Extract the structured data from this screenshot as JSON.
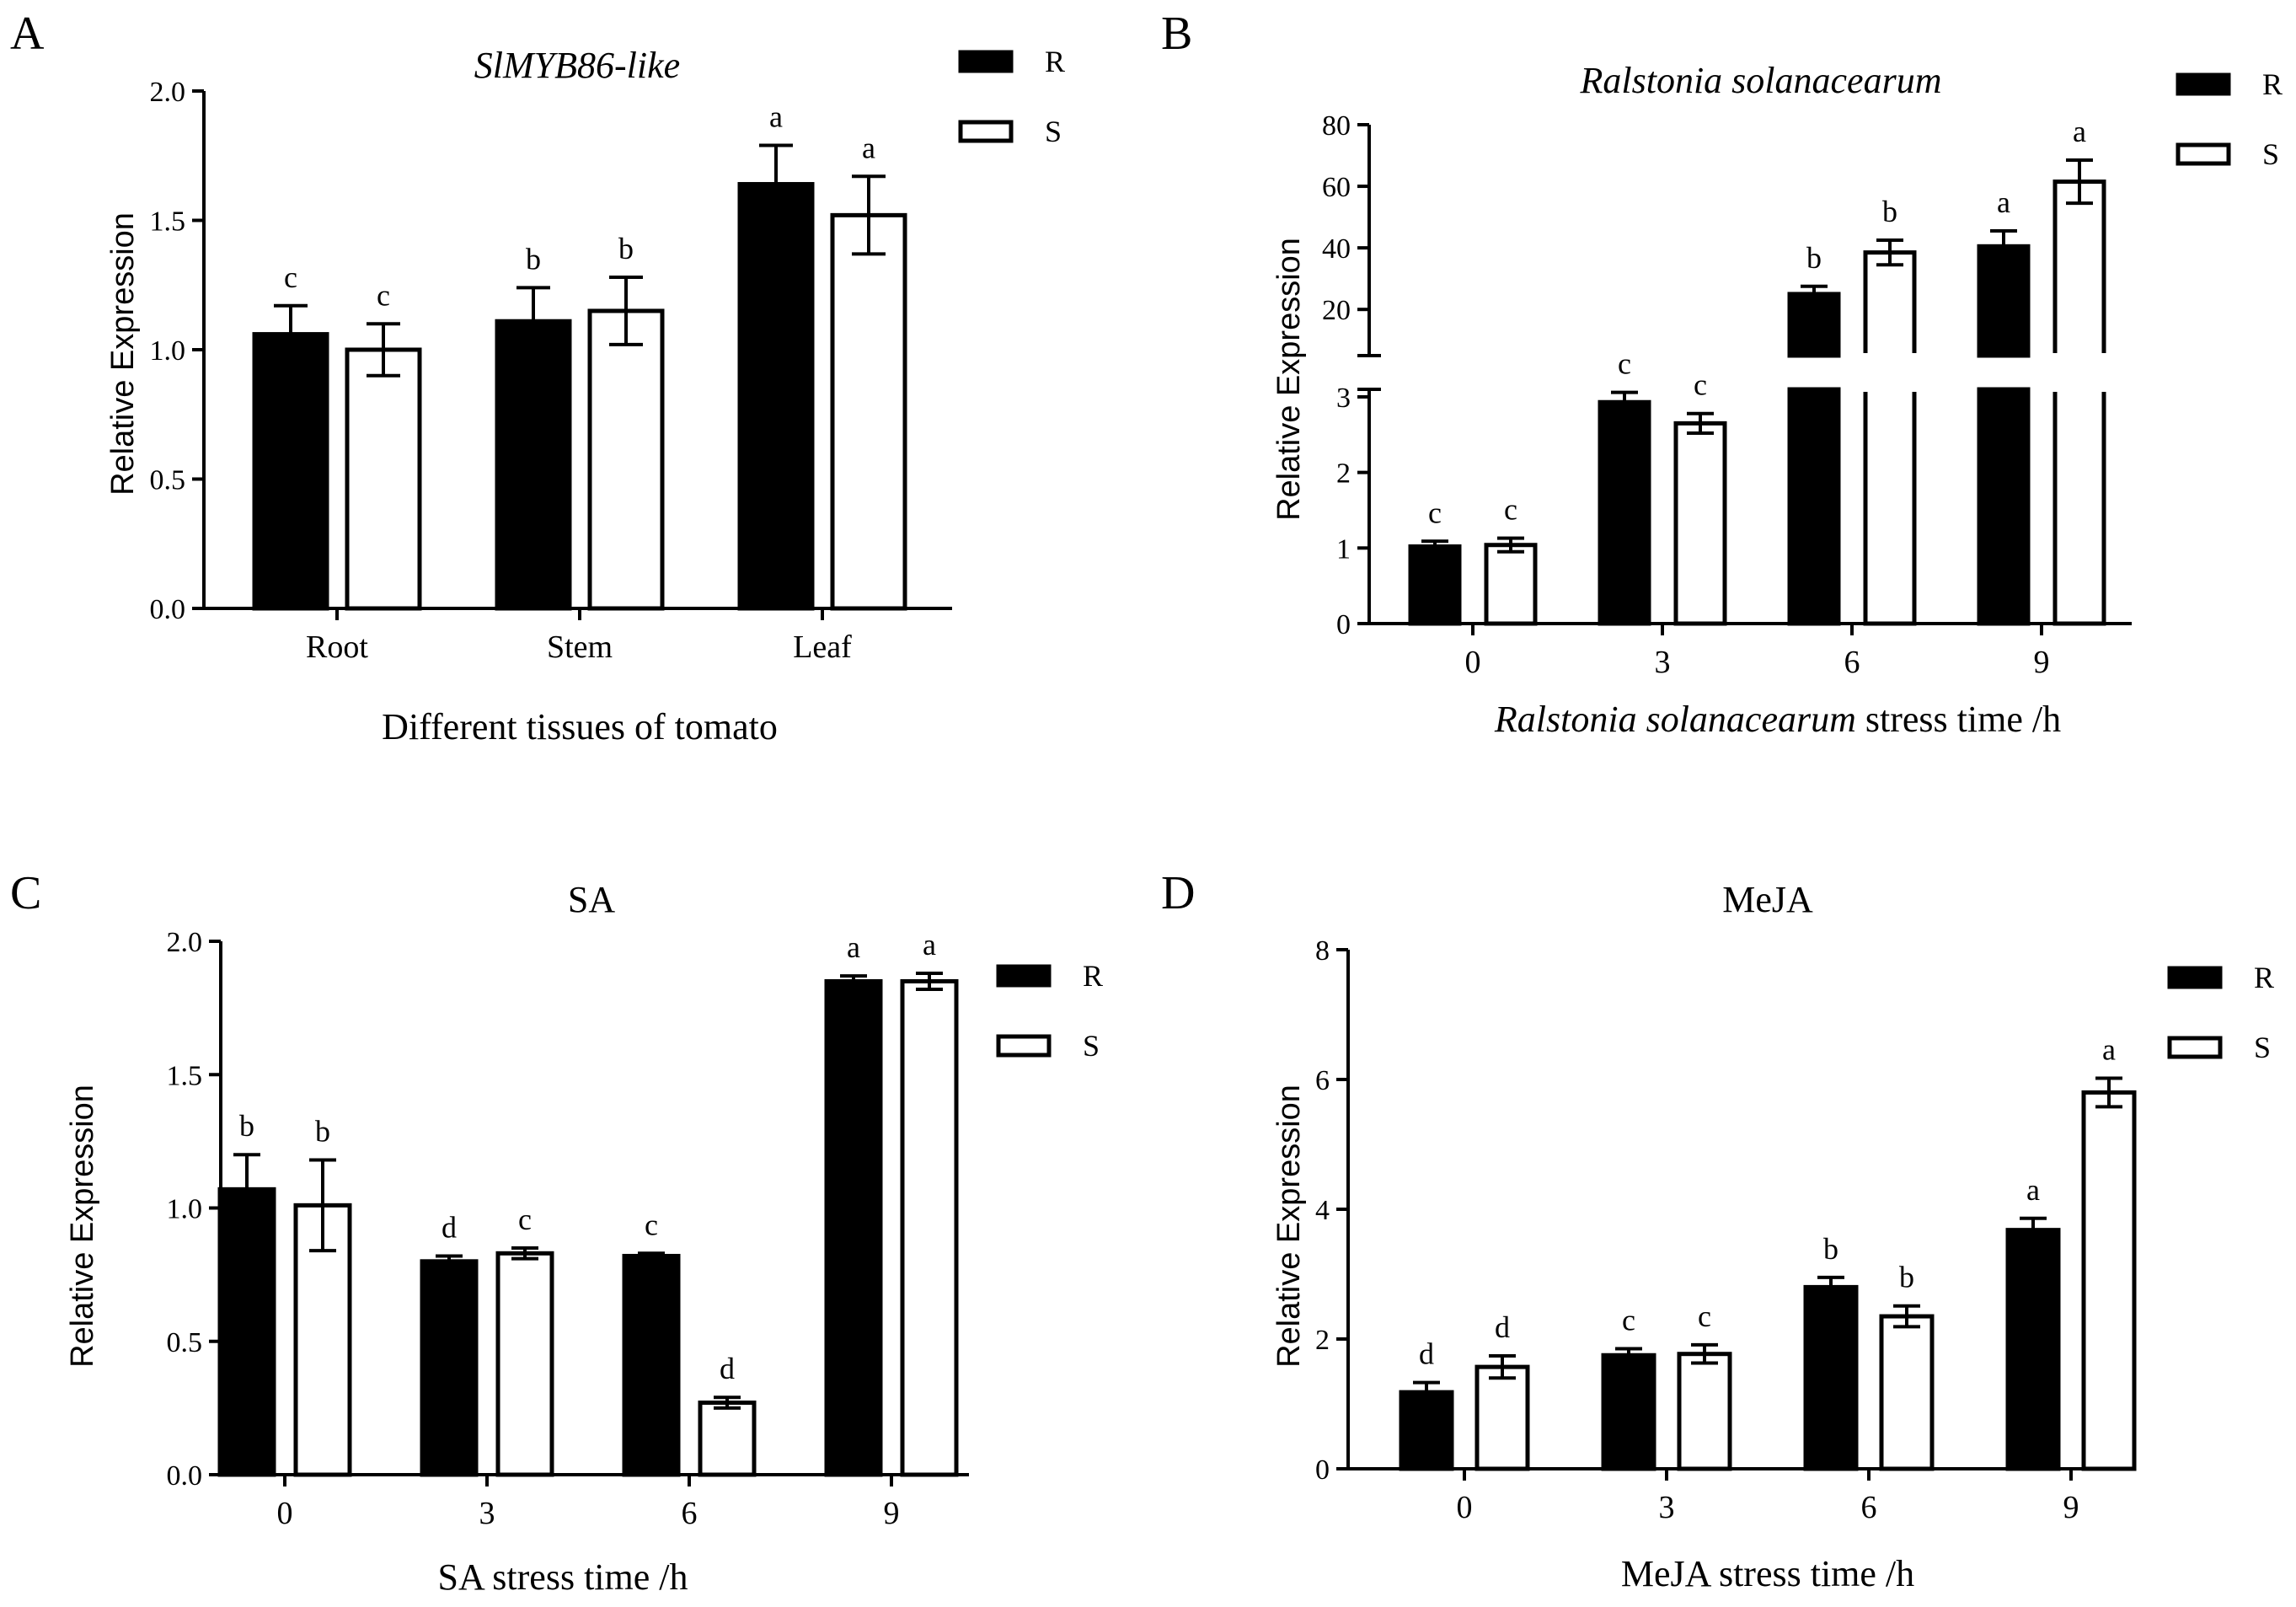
{
  "chart_data": [
    {
      "panel": "A",
      "type": "bar",
      "title": "SlMYB86-like",
      "xlabel": "Different tissues of tomato",
      "ylabel": "Relative Expression",
      "categories": [
        "Root",
        "Stem",
        "Leaf"
      ],
      "ylim": [
        0,
        2.0
      ],
      "yticks": [
        "0.0",
        "0.5",
        "1.0",
        "1.5",
        "2.0"
      ],
      "legend_position": "top-right",
      "series": [
        {
          "name": "R",
          "values": [
            1.06,
            1.11,
            1.64
          ],
          "errors": [
            0.11,
            0.13,
            0.15
          ],
          "letters": [
            "c",
            "b",
            "a"
          ]
        },
        {
          "name": "S",
          "values": [
            1.0,
            1.15,
            1.52
          ],
          "errors": [
            0.1,
            0.13,
            0.15
          ],
          "letters": [
            "c",
            "b",
            "a"
          ]
        }
      ]
    },
    {
      "panel": "B",
      "type": "bar",
      "title": "Ralstonia solanacearum",
      "xlabel_italic": "Ralstonia solanacearum",
      "xlabel_rest": " stress time /h",
      "ylabel": "Relative Expression",
      "categories": [
        "0",
        "3",
        "6",
        "9"
      ],
      "axis_break": true,
      "ylim_lower": [
        0,
        3.1
      ],
      "ylim_upper": [
        5,
        80
      ],
      "yticks_lower": [
        "0",
        "1",
        "2",
        "3"
      ],
      "yticks_upper": [
        "20",
        "40",
        "60",
        "80"
      ],
      "legend_position": "top-right",
      "series": [
        {
          "name": "R",
          "values": [
            1.02,
            2.93,
            25.0,
            40.5
          ],
          "errors": [
            0.07,
            0.13,
            2.5,
            5.0
          ],
          "letters": [
            "c",
            "c",
            "b",
            "a"
          ]
        },
        {
          "name": "S",
          "values": [
            1.04,
            2.65,
            38.5,
            61.5
          ],
          "errors": [
            0.09,
            0.13,
            4.0,
            7.0
          ],
          "letters": [
            "c",
            "c",
            "b",
            "a"
          ]
        }
      ]
    },
    {
      "panel": "C",
      "type": "bar",
      "title": "SA",
      "xlabel": "SA stress time /h",
      "ylabel": "Relative Expression",
      "categories": [
        "0",
        "3",
        "6",
        "9"
      ],
      "ylim": [
        0,
        2.0
      ],
      "yticks": [
        "0.0",
        "0.5",
        "1.0",
        "1.5",
        "2.0"
      ],
      "legend_position": "top-right",
      "series": [
        {
          "name": "R",
          "values": [
            1.07,
            0.8,
            0.82,
            1.85
          ],
          "errors": [
            0.13,
            0.02,
            0.01,
            0.02
          ],
          "letters": [
            "b",
            "d",
            "c",
            "a"
          ]
        },
        {
          "name": "S",
          "values": [
            1.01,
            0.83,
            0.27,
            1.85
          ],
          "errors": [
            0.17,
            0.02,
            0.02,
            0.03
          ],
          "letters": [
            "b",
            "c",
            "d",
            "a"
          ]
        }
      ]
    },
    {
      "panel": "D",
      "type": "bar",
      "title": "MeJA",
      "xlabel": "MeJA stress time /h",
      "ylabel": "Relative Expression",
      "categories": [
        "0",
        "3",
        "6",
        "9"
      ],
      "ylim": [
        0,
        8
      ],
      "yticks": [
        "0",
        "2",
        "4",
        "6",
        "8"
      ],
      "legend_position": "top-right",
      "series": [
        {
          "name": "R",
          "values": [
            1.18,
            1.75,
            2.8,
            3.68
          ],
          "errors": [
            0.15,
            0.1,
            0.15,
            0.18
          ],
          "letters": [
            "d",
            "c",
            "b",
            "a"
          ]
        },
        {
          "name": "S",
          "values": [
            1.57,
            1.77,
            2.35,
            5.8
          ],
          "errors": [
            0.17,
            0.14,
            0.16,
            0.22
          ],
          "letters": [
            "d",
            "c",
            "b",
            "a"
          ]
        }
      ]
    }
  ],
  "colors": {
    "R": "#000000",
    "S": "#ffffff",
    "stroke": "#000000"
  }
}
